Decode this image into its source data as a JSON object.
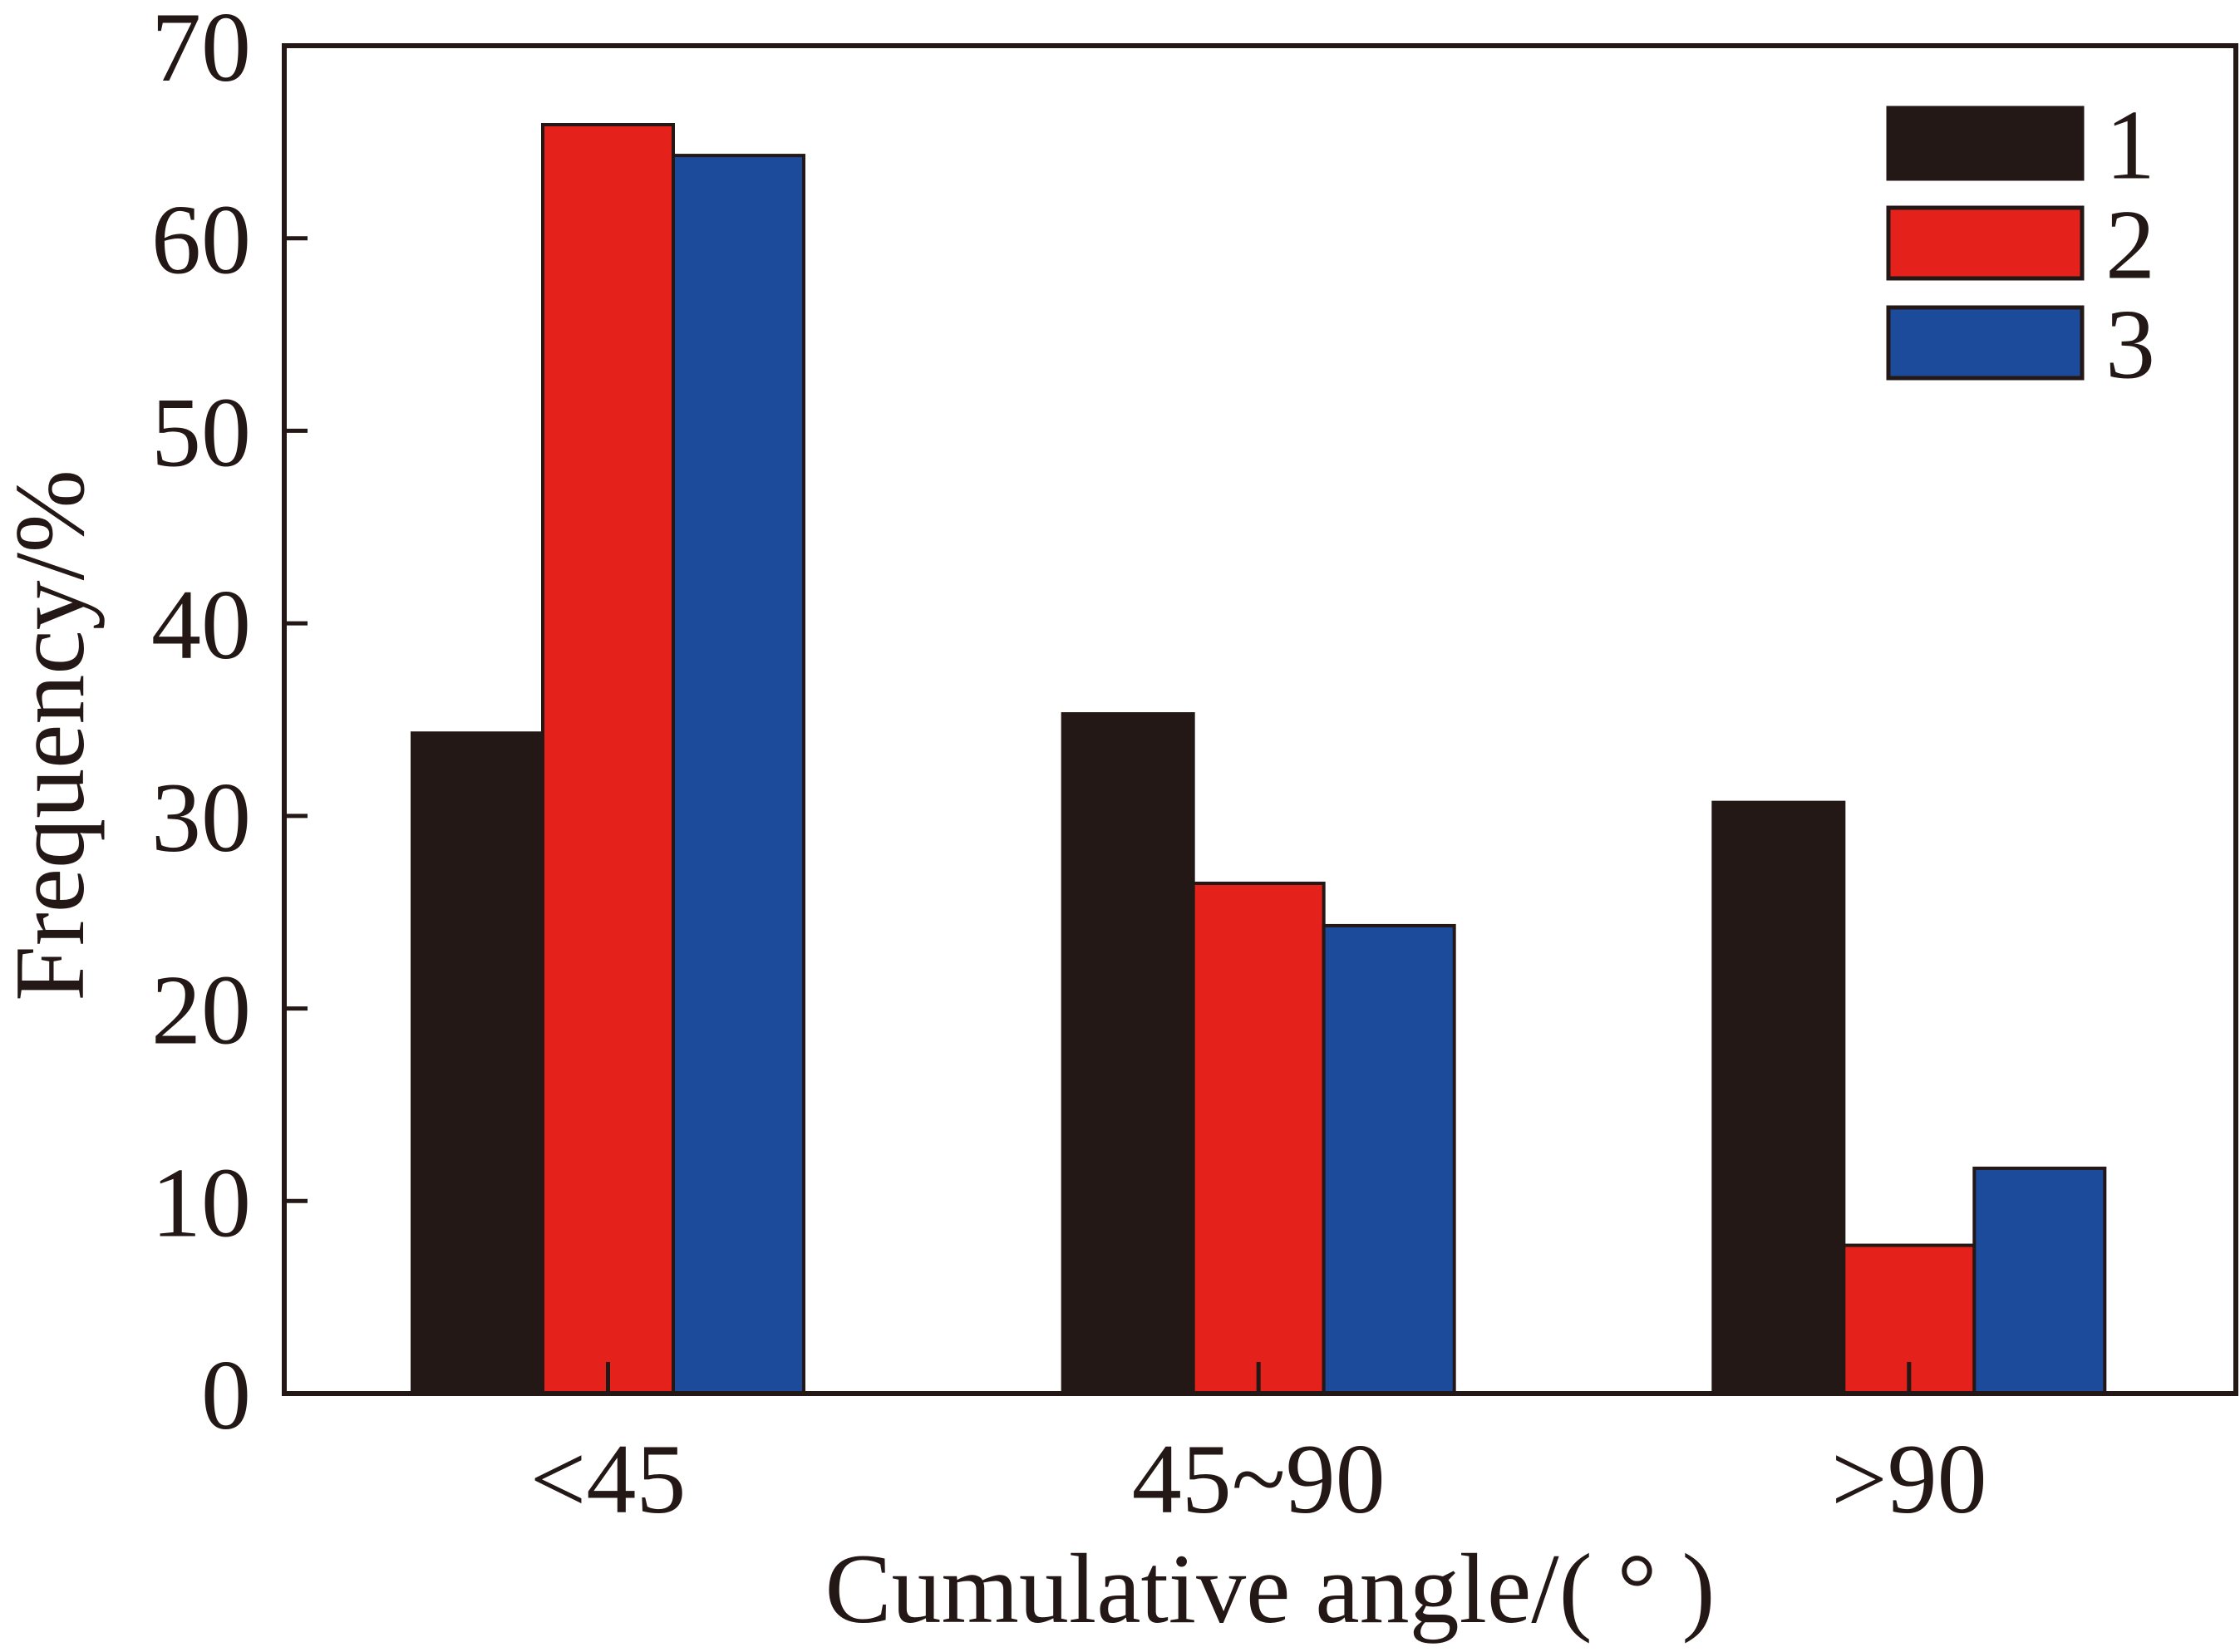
{
  "chart_data": {
    "type": "bar",
    "title": "",
    "xlabel": "Cumulative angle/( ° )",
    "ylabel": "Frequency/%",
    "categories": [
      "<45",
      "45~90",
      ">90"
    ],
    "series": [
      {
        "name": "1",
        "color": "#231815",
        "values": [
          34.3,
          35.3,
          30.7
        ]
      },
      {
        "name": "2",
        "color": "#e4211b",
        "values": [
          65.9,
          26.5,
          7.7
        ]
      },
      {
        "name": "3",
        "color": "#1c4b9c",
        "values": [
          64.3,
          24.3,
          11.7
        ]
      }
    ],
    "ylim": [
      0,
      70
    ],
    "yticks": [
      "0",
      "10",
      "20",
      "30",
      "40",
      "50",
      "60",
      "70"
    ],
    "grid": false,
    "legend_position": "top-right"
  }
}
